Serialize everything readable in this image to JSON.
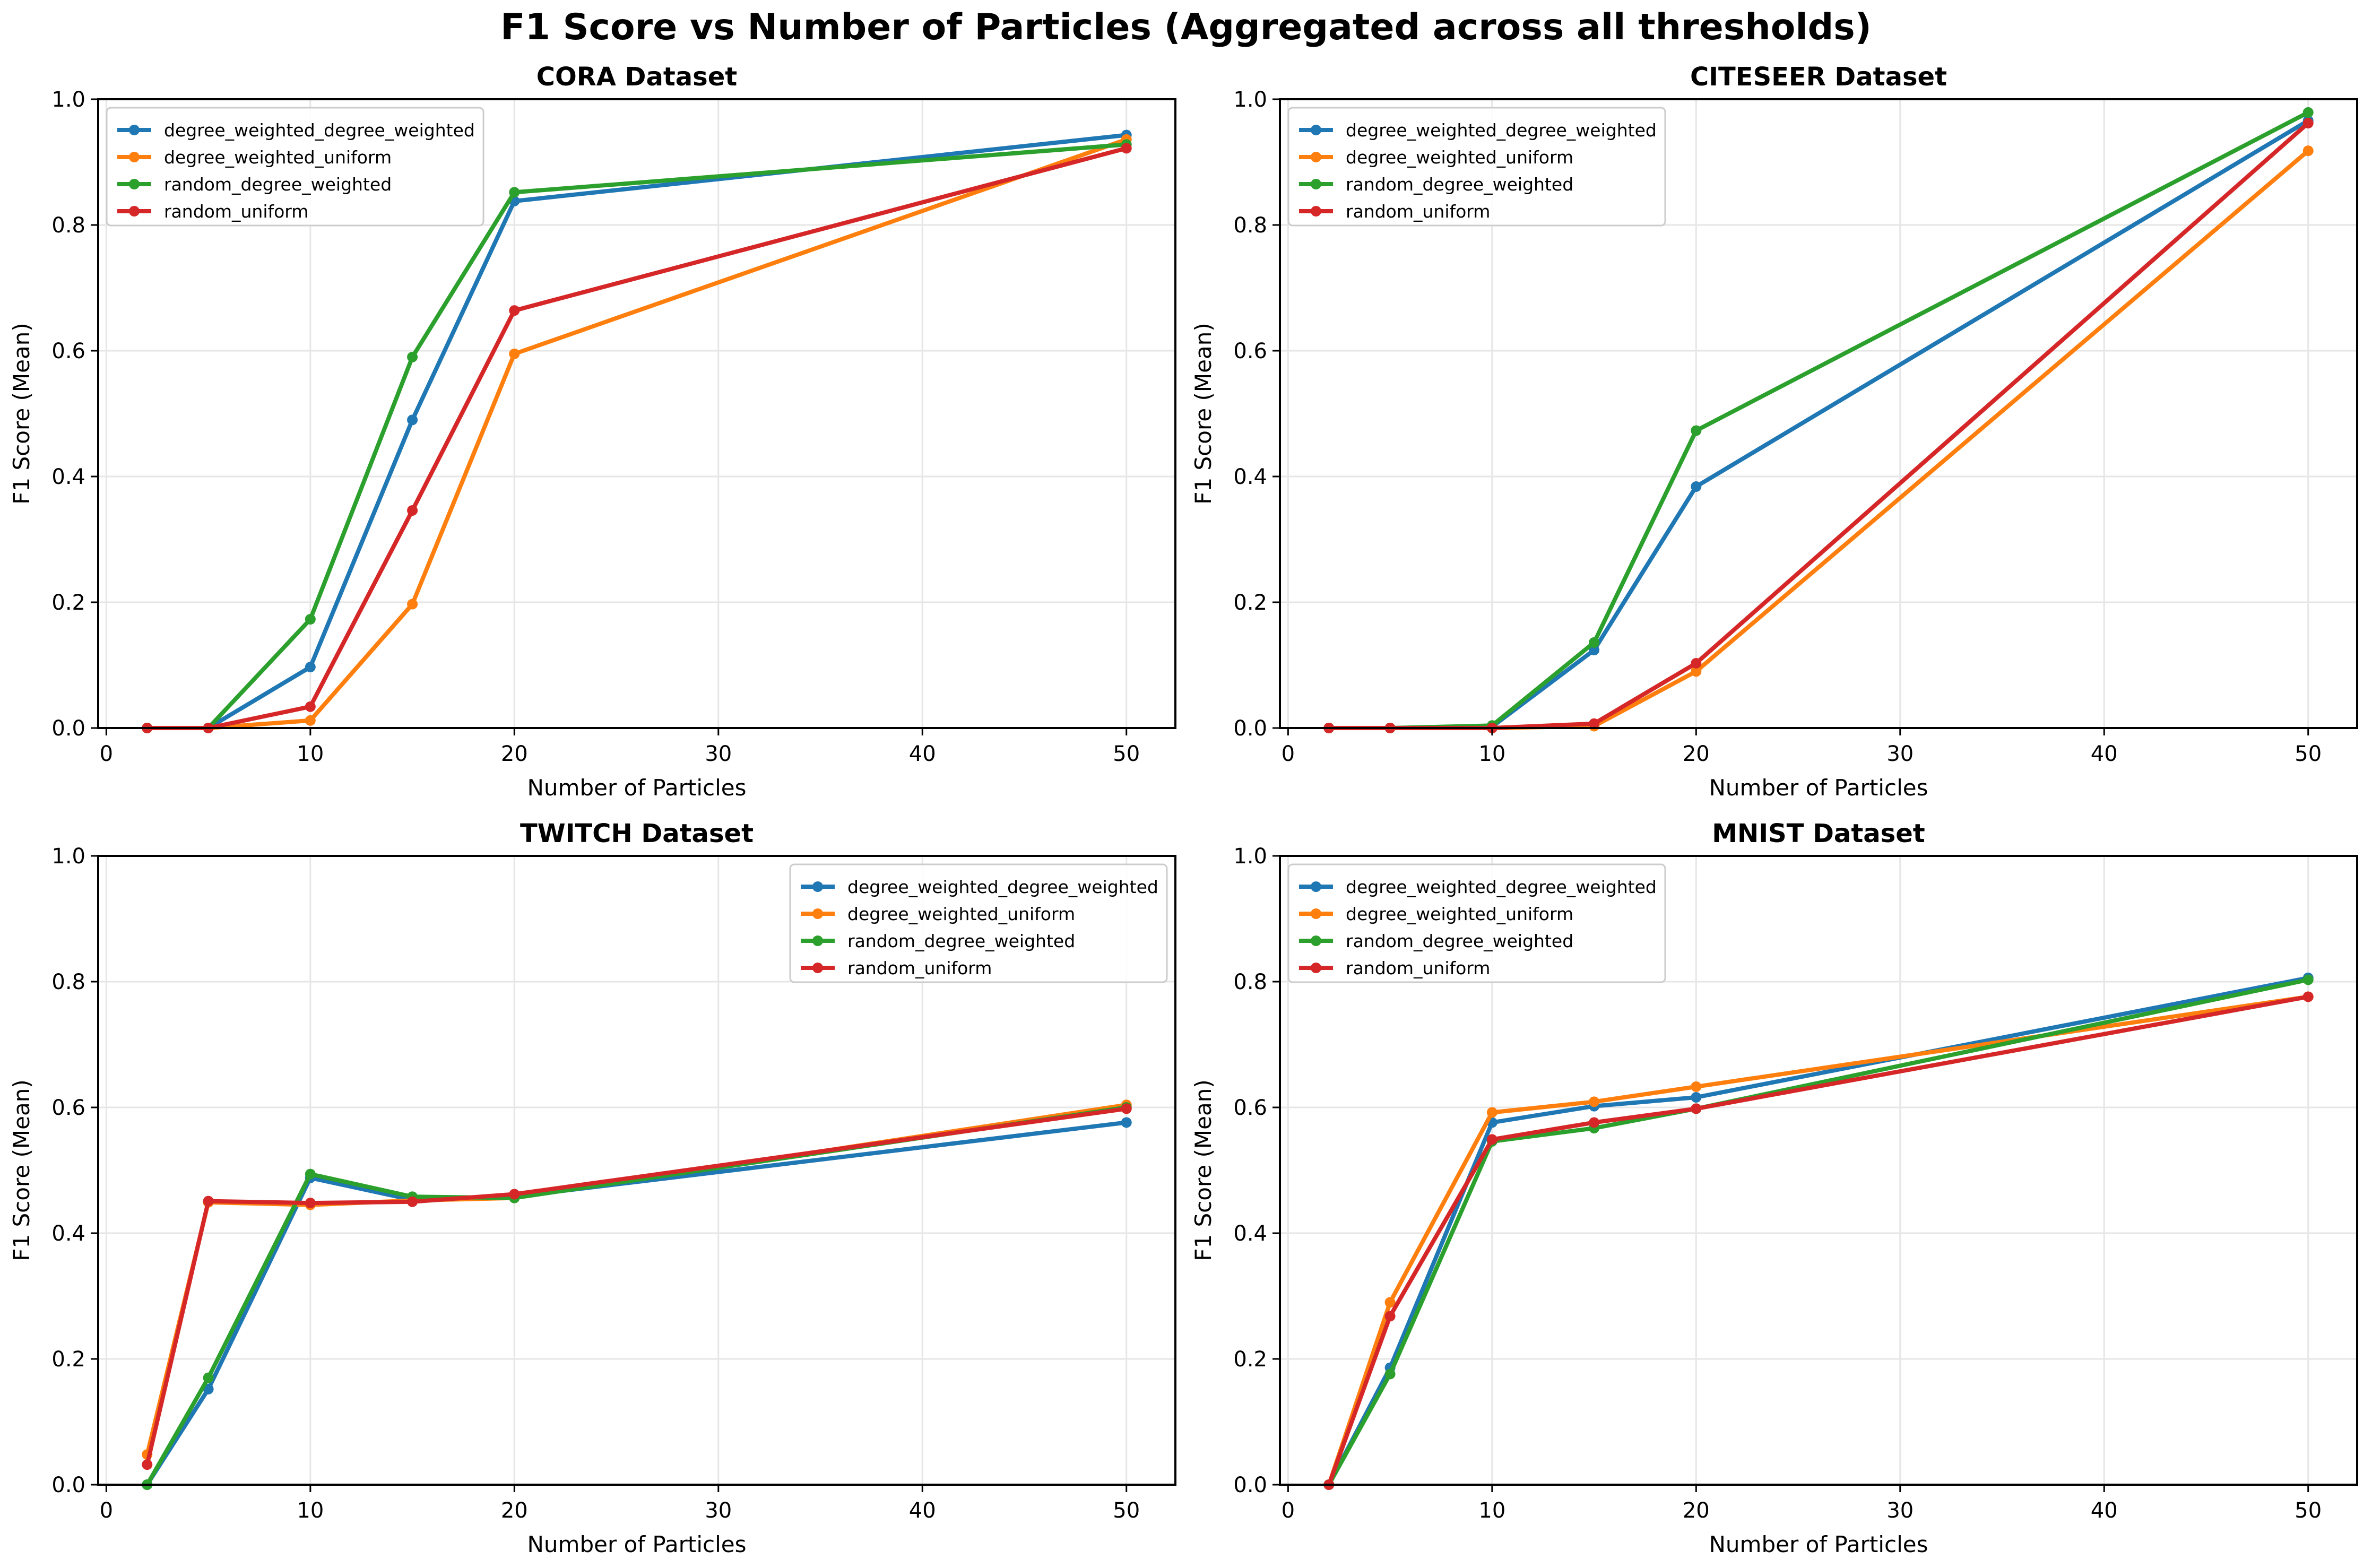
{
  "figure_title": "F1 Score vs Number of Particles (Aggregated across all thresholds)",
  "colors": {
    "degree_weighted_degree_weighted": "#1f77b4",
    "degree_weighted_uniform": "#ff7f0e",
    "random_degree_weighted": "#2ca02c",
    "random_uniform": "#d62728"
  },
  "chart_data": [
    {
      "type": "line",
      "title": "CORA Dataset",
      "xlabel": "Number of Particles",
      "ylabel": "F1 Score (Mean)",
      "xlim": [
        -0.4,
        52.4
      ],
      "ylim": [
        0,
        1.0
      ],
      "xticks": [
        0,
        10,
        20,
        30,
        40,
        50
      ],
      "yticks": [
        0.0,
        0.2,
        0.4,
        0.6,
        0.8,
        1.0
      ],
      "grid": true,
      "legend_position": "top-left",
      "x": [
        2,
        5,
        10,
        15,
        20,
        50
      ],
      "series": [
        {
          "name": "degree_weighted_degree_weighted",
          "values": [
            0.0,
            0.0,
            0.097,
            0.49,
            0.838,
            0.943
          ]
        },
        {
          "name": "degree_weighted_uniform",
          "values": [
            0.0,
            0.0,
            0.012,
            0.197,
            0.595,
            0.936
          ]
        },
        {
          "name": "random_degree_weighted",
          "values": [
            0.0,
            0.0,
            0.173,
            0.59,
            0.852,
            0.928
          ]
        },
        {
          "name": "random_uniform",
          "values": [
            0.0,
            0.0,
            0.034,
            0.346,
            0.664,
            0.922
          ]
        }
      ]
    },
    {
      "type": "line",
      "title": "CITESEER Dataset",
      "xlabel": "Number of Particles",
      "ylabel": "F1 Score (Mean)",
      "xlim": [
        -0.4,
        52.4
      ],
      "ylim": [
        0,
        1.0
      ],
      "xticks": [
        0,
        10,
        20,
        30,
        40,
        50
      ],
      "yticks": [
        0.0,
        0.2,
        0.4,
        0.6,
        0.8,
        1.0
      ],
      "grid": true,
      "legend_position": "top-left",
      "x": [
        2,
        5,
        10,
        15,
        20,
        50
      ],
      "series": [
        {
          "name": "degree_weighted_degree_weighted",
          "values": [
            0.0,
            0.0,
            0.002,
            0.124,
            0.384,
            0.966
          ]
        },
        {
          "name": "degree_weighted_uniform",
          "values": [
            0.0,
            0.0,
            0.0,
            0.003,
            0.09,
            0.918
          ]
        },
        {
          "name": "random_degree_weighted",
          "values": [
            0.0,
            0.0,
            0.004,
            0.136,
            0.473,
            0.979
          ]
        },
        {
          "name": "random_uniform",
          "values": [
            0.0,
            0.0,
            0.0,
            0.007,
            0.103,
            0.962
          ]
        }
      ]
    },
    {
      "type": "line",
      "title": "TWITCH Dataset",
      "xlabel": "Number of Particles",
      "ylabel": "F1 Score (Mean)",
      "xlim": [
        -0.4,
        52.4
      ],
      "ylim": [
        0,
        1.0
      ],
      "xticks": [
        0,
        10,
        20,
        30,
        40,
        50
      ],
      "yticks": [
        0.0,
        0.2,
        0.4,
        0.6,
        0.8,
        1.0
      ],
      "grid": true,
      "legend_position": "top-right",
      "x": [
        2,
        5,
        10,
        15,
        20,
        50
      ],
      "series": [
        {
          "name": "degree_weighted_degree_weighted",
          "values": [
            0.0,
            0.152,
            0.488,
            0.453,
            0.458,
            0.576
          ]
        },
        {
          "name": "degree_weighted_uniform",
          "values": [
            0.048,
            0.449,
            0.445,
            0.452,
            0.456,
            0.604
          ]
        },
        {
          "name": "random_degree_weighted",
          "values": [
            0.0,
            0.17,
            0.494,
            0.458,
            0.456,
            0.6
          ]
        },
        {
          "name": "random_uniform",
          "values": [
            0.032,
            0.451,
            0.448,
            0.45,
            0.462,
            0.598
          ]
        }
      ]
    },
    {
      "type": "line",
      "title": "MNIST Dataset",
      "xlabel": "Number of Particles",
      "ylabel": "F1 Score (Mean)",
      "xlim": [
        -0.4,
        52.4
      ],
      "ylim": [
        0,
        1.0
      ],
      "xticks": [
        0,
        10,
        20,
        30,
        40,
        50
      ],
      "yticks": [
        0.0,
        0.2,
        0.4,
        0.6,
        0.8,
        1.0
      ],
      "grid": true,
      "legend_position": "top-left",
      "x": [
        2,
        5,
        10,
        15,
        20,
        50
      ],
      "series": [
        {
          "name": "degree_weighted_degree_weighted",
          "values": [
            0.0,
            0.186,
            0.576,
            0.602,
            0.616,
            0.806
          ]
        },
        {
          "name": "degree_weighted_uniform",
          "values": [
            0.0,
            0.29,
            0.592,
            0.609,
            0.633,
            0.776
          ]
        },
        {
          "name": "random_degree_weighted",
          "values": [
            0.0,
            0.176,
            0.546,
            0.567,
            0.598,
            0.803
          ]
        },
        {
          "name": "random_uniform",
          "values": [
            0.0,
            0.268,
            0.549,
            0.576,
            0.598,
            0.776
          ]
        }
      ]
    }
  ]
}
